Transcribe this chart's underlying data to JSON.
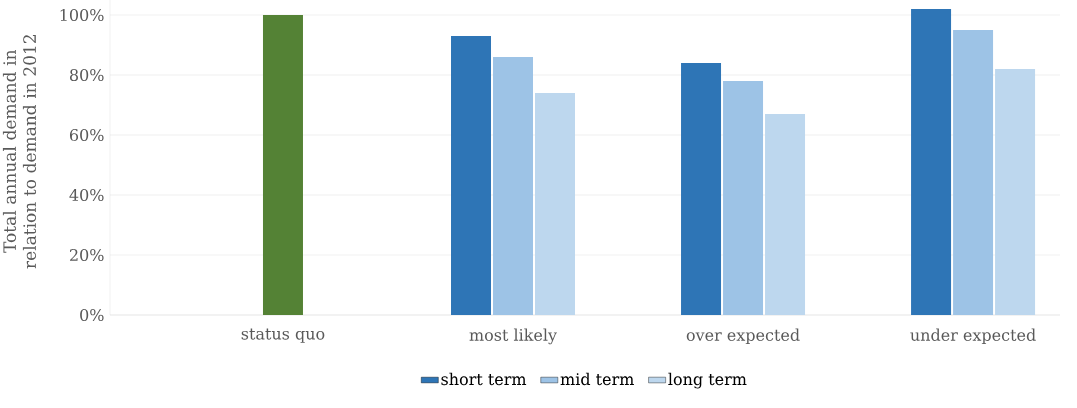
{
  "chart_data": {
    "type": "bar",
    "ylabel": "Total annual demand in relation to demand in 2012",
    "categories": [
      "status quo",
      "most likely",
      "over expected",
      "under expected"
    ],
    "series": [
      {
        "name": "short term",
        "color": "#2e75b6",
        "values": [
          null,
          93,
          84,
          102
        ]
      },
      {
        "name": "mid term",
        "color": "#9dc3e6",
        "colors": [
          "#548235",
          "#9dc3e6",
          "#9dc3e6",
          "#9dc3e6"
        ],
        "values": [
          100,
          86,
          78,
          95
        ]
      },
      {
        "name": "long term",
        "color": "#bdd7ee",
        "values": [
          null,
          74,
          67,
          82
        ]
      }
    ],
    "ylim": [
      0,
      105
    ],
    "yticks": [
      {
        "value": 0,
        "label": "0%"
      },
      {
        "value": 20,
        "label": "20%"
      },
      {
        "value": 40,
        "label": "40%"
      },
      {
        "value": 60,
        "label": "60%"
      },
      {
        "value": 80,
        "label": "80%"
      },
      {
        "value": 100,
        "label": "100%"
      }
    ],
    "grid": "y",
    "legend": "bottom"
  }
}
